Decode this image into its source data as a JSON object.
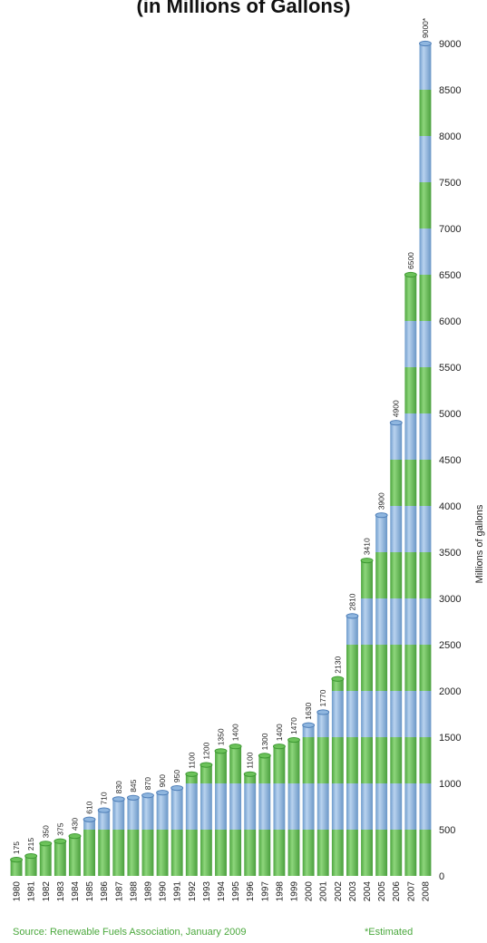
{
  "chart_data": {
    "type": "bar",
    "title": "(in Millions of Gallons)",
    "ylabel": "Millions of gallons",
    "ylim": [
      0,
      9000
    ],
    "yticks": [
      "0",
      "500",
      "1000",
      "1500",
      "2000",
      "2500",
      "3000",
      "3500",
      "4000",
      "4500",
      "5000",
      "5500",
      "6000",
      "6500",
      "7000",
      "7500",
      "8000",
      "8500",
      "9000"
    ],
    "categories": [
      "1980",
      "1981",
      "1982",
      "1983",
      "1984",
      "1985",
      "1986",
      "1987",
      "1988",
      "1989",
      "1990",
      "1991",
      "1992",
      "1993",
      "1994",
      "1995",
      "1996",
      "1997",
      "1998",
      "1999",
      "2000",
      "2001",
      "2002",
      "2003",
      "2004",
      "2005",
      "2006",
      "2007",
      "2008"
    ],
    "values": [
      175,
      215,
      350,
      375,
      430,
      610,
      710,
      830,
      845,
      870,
      900,
      950,
      1100,
      1200,
      1350,
      1400,
      1100,
      1300,
      1400,
      1470,
      1630,
      1770,
      2130,
      2810,
      3410,
      3900,
      4900,
      6500,
      9000
    ],
    "value_labels": [
      "175",
      "215",
      "350",
      "375",
      "430",
      "610",
      "710",
      "830",
      "845",
      "870",
      "900",
      "950",
      "1100",
      "1200",
      "1350",
      "1400",
      "1100",
      "1300",
      "1400",
      "1470",
      "1630",
      "1770",
      "2130",
      "2810",
      "3410",
      "3900",
      "4900",
      "6500",
      "9000*"
    ],
    "colors": {
      "green": "#6cc25a",
      "green_dark": "#3f9a34",
      "blue": "#8fb6df",
      "blue_dark": "#4f7fb8"
    },
    "band_size": 500,
    "grid": false,
    "legend": "none"
  },
  "footer": {
    "source": "Source: Renewable Fuels Association, January 2009",
    "note": "*Estimated"
  }
}
